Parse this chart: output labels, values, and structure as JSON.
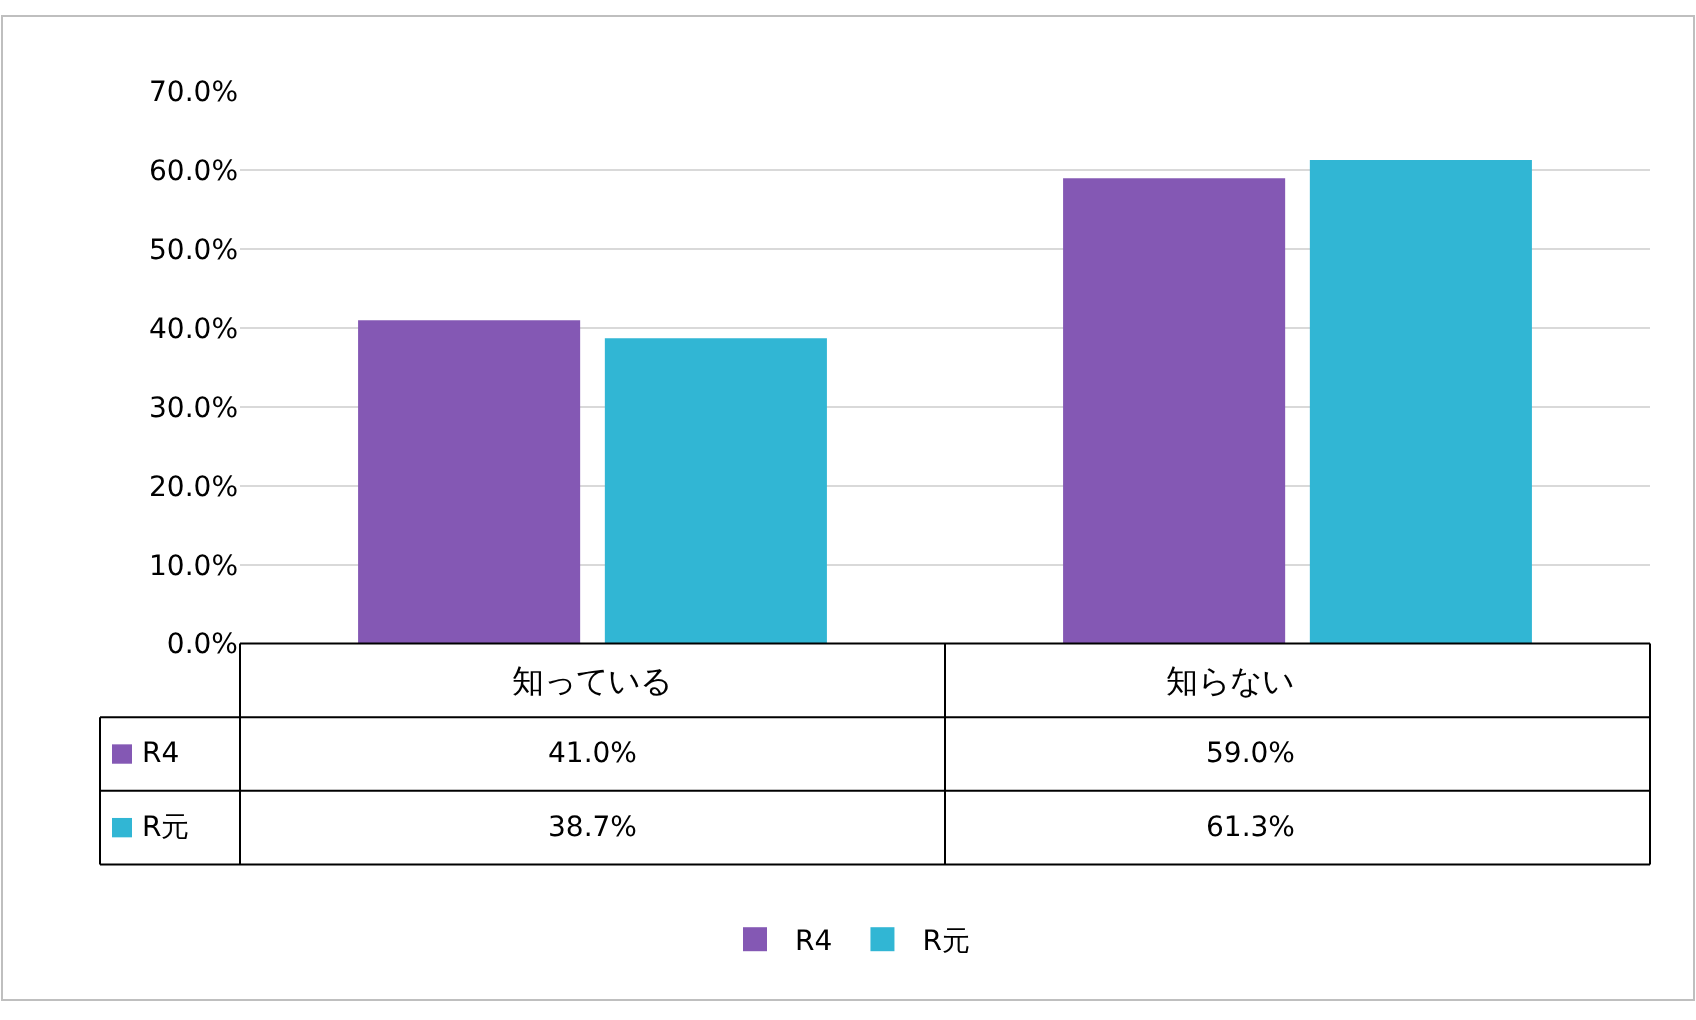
{
  "chart_data": {
    "type": "bar",
    "categories": [
      "知っている",
      "知らない"
    ],
    "series": [
      {
        "name": "R4",
        "color": "#8458b4",
        "values": [
          41.0,
          59.0
        ],
        "value_labels": [
          "41.0%",
          "59.0%"
        ]
      },
      {
        "name": "R元",
        "color": "#31b6d4",
        "values": [
          38.7,
          61.3
        ],
        "value_labels": [
          "38.7%",
          "61.3%"
        ]
      }
    ],
    "ylim": [
      0,
      70
    ],
    "yticks": [
      {
        "value": 0,
        "label": "0.0%"
      },
      {
        "value": 10,
        "label": "10.0%"
      },
      {
        "value": 20,
        "label": "20.0%"
      },
      {
        "value": 30,
        "label": "30.0%"
      },
      {
        "value": 40,
        "label": "40.0%"
      },
      {
        "value": 50,
        "label": "50.0%"
      },
      {
        "value": 60,
        "label": "60.0%"
      },
      {
        "value": 70,
        "label": "70.0%"
      }
    ],
    "grid": "y",
    "legend": "bottom"
  }
}
